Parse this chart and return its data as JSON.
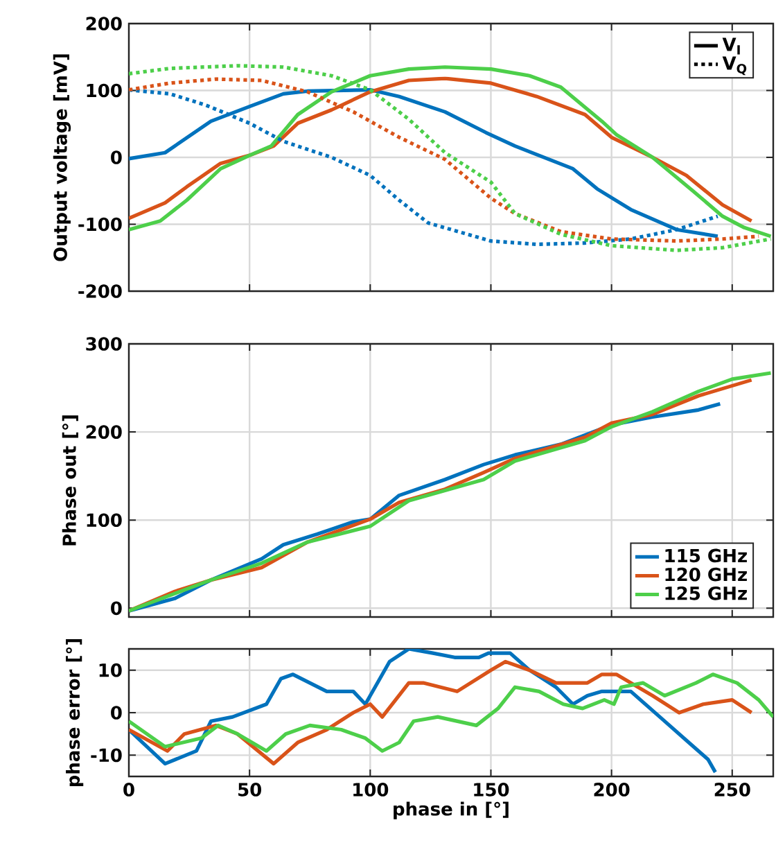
{
  "chart_data": [
    {
      "type": "line",
      "ylabel": "Output voltage [mV]",
      "xlim": [
        0,
        267
      ],
      "xticks": [
        0,
        50,
        100,
        150,
        200,
        250
      ],
      "ylim": [
        -200,
        200
      ],
      "yticks": [
        -200,
        -100,
        0,
        100,
        200
      ],
      "grid": true,
      "tick_labels": "y",
      "legend": "top right",
      "annotations": [
        "V$_{I}$",
        "V$_{Q}$"
      ],
      "series": [
        {
          "color": "#0072bd",
          "line_style": "solid",
          "x": [
            0,
            15,
            34,
            50,
            64,
            74,
            100,
            112,
            131,
            148,
            160,
            184,
            194,
            208,
            227,
            244
          ],
          "values": [
            -2,
            7,
            54,
            76,
            95,
            99,
            101,
            91,
            68,
            37,
            17,
            -17,
            -47,
            -78,
            -108,
            -118
          ]
        },
        {
          "color": "#d95319",
          "line_style": "solid",
          "x": [
            0,
            15,
            24,
            38,
            50,
            60,
            70,
            84,
            100,
            116,
            131,
            150,
            169,
            189,
            200,
            217,
            231,
            246,
            258
          ],
          "values": [
            -91,
            -68,
            -44,
            -9,
            3,
            17,
            51,
            71,
            98,
            115,
            118,
            111,
            91,
            64,
            30,
            0,
            -27,
            -71,
            -95
          ]
        },
        {
          "color": "#4dcf4a",
          "line_style": "solid",
          "x": [
            0,
            13,
            24,
            38,
            50,
            59,
            70,
            84,
            100,
            116,
            131,
            150,
            166,
            179,
            196,
            202,
            217,
            234,
            246,
            255,
            266
          ],
          "values": [
            -108,
            -95,
            -64,
            -17,
            3,
            17,
            64,
            98,
            122,
            132,
            135,
            132,
            122,
            105,
            54,
            34,
            0,
            -51,
            -88,
            -105,
            -118
          ]
        },
        {
          "color": "#0072bd",
          "line_style": "dotted",
          "x": [
            0,
            17,
            32,
            50,
            64,
            84,
            100,
            112,
            124,
            150,
            169,
            189,
            208,
            227,
            244
          ],
          "values": [
            101,
            95,
            78,
            51,
            24,
            0,
            -27,
            -64,
            -98,
            -125,
            -130,
            -128,
            -122,
            -108,
            -88
          ]
        },
        {
          "color": "#d95319",
          "line_style": "dotted",
          "x": [
            0,
            17,
            36,
            55,
            74,
            93,
            112,
            131,
            150,
            160,
            179,
            200,
            227,
            246,
            261
          ],
          "values": [
            101,
            111,
            117,
            115,
            98,
            68,
            30,
            -3,
            -61,
            -84,
            -111,
            -122,
            -125,
            -122,
            -118
          ]
        },
        {
          "color": "#4dcf4a",
          "line_style": "dotted",
          "x": [
            0,
            17,
            45,
            64,
            84,
            100,
            116,
            131,
            150,
            160,
            179,
            200,
            227,
            246,
            266
          ],
          "values": [
            125,
            133,
            137,
            135,
            122,
            101,
            57,
            7,
            -37,
            -84,
            -115,
            -132,
            -139,
            -135,
            -122
          ]
        }
      ]
    },
    {
      "type": "line",
      "ylabel": "Phase out [°]",
      "xlim": [
        0,
        267
      ],
      "xticks": [
        0,
        50,
        100,
        150,
        200,
        250
      ],
      "ylim": [
        -10,
        300
      ],
      "yticks": [
        0,
        100,
        200,
        300
      ],
      "grid": true,
      "tick_labels": "y",
      "legend": "bottom right",
      "series": [
        {
          "name": "115 GHz",
          "color": "#0072bd",
          "x": [
            0,
            19,
            34,
            55,
            64,
            78,
            93,
            100,
            112,
            131,
            147,
            160,
            179,
            200,
            217,
            236,
            245
          ],
          "values": [
            -3,
            11,
            32,
            56,
            72,
            84,
            98,
            101,
            128,
            146,
            163,
            174,
            186,
            208,
            217,
            225,
            232
          ]
        },
        {
          "name": "120 GHz",
          "color": "#d95319",
          "x": [
            0,
            19,
            34,
            55,
            74,
            100,
            112,
            131,
            147,
            160,
            189,
            200,
            217,
            236,
            258
          ],
          "values": [
            -3,
            19,
            32,
            46,
            75,
            101,
            120,
            135,
            154,
            170,
            194,
            210,
            220,
            241,
            259
          ]
        },
        {
          "name": "125 GHz",
          "color": "#4dcf4a",
          "x": [
            0,
            34,
            55,
            74,
            100,
            116,
            147,
            160,
            189,
            200,
            217,
            236,
            250,
            266
          ],
          "values": [
            -3,
            32,
            51,
            75,
            93,
            122,
            146,
            167,
            190,
            206,
            223,
            246,
            260,
            267
          ]
        }
      ]
    },
    {
      "type": "line",
      "ylabel": "phase error [°]",
      "xlabel": "phase in [°]",
      "xlim": [
        0,
        267
      ],
      "xticks": [
        0,
        50,
        100,
        150,
        200,
        250
      ],
      "ylim": [
        -15,
        15
      ],
      "yticks": [
        -10,
        0,
        10
      ],
      "grid": true,
      "series": [
        {
          "color": "#0072bd",
          "x": [
            0,
            15,
            28,
            34,
            43,
            57,
            63,
            68,
            75,
            82,
            93,
            98,
            108,
            116,
            126,
            135,
            145,
            149,
            158,
            166,
            177,
            184,
            190,
            196,
            208,
            220,
            232,
            240,
            243
          ],
          "values": [
            -4,
            -12,
            -9,
            -2,
            -1,
            2,
            8,
            9,
            7,
            5,
            5,
            2,
            12,
            15,
            14,
            13,
            13,
            14,
            14,
            10,
            6,
            2,
            4,
            5,
            5,
            -1,
            -7,
            -11,
            -14
          ]
        },
        {
          "color": "#d95319",
          "x": [
            0,
            16,
            23,
            36,
            45,
            60,
            70,
            82,
            93,
            100,
            105,
            116,
            122,
            136,
            150,
            156,
            166,
            177,
            190,
            196,
            202,
            217,
            228,
            238,
            250,
            258
          ],
          "values": [
            -4,
            -9,
            -5,
            -3,
            -5,
            -12,
            -7,
            -4,
            0,
            2,
            -1,
            7,
            7,
            5,
            10,
            12,
            10,
            7,
            7,
            9,
            9,
            4,
            0,
            2,
            3,
            0
          ]
        },
        {
          "color": "#4dcf4a",
          "x": [
            0,
            15,
            30,
            37,
            45,
            57,
            65,
            75,
            88,
            98,
            105,
            112,
            118,
            128,
            144,
            153,
            160,
            170,
            180,
            188,
            197,
            201,
            204,
            213,
            222,
            235,
            242,
            252,
            261,
            267
          ],
          "values": [
            -2,
            -8,
            -6,
            -3,
            -5,
            -9,
            -5,
            -3,
            -4,
            -6,
            -9,
            -7,
            -2,
            -1,
            -3,
            1,
            6,
            5,
            2,
            1,
            3,
            2,
            6,
            7,
            4,
            7,
            9,
            7,
            3,
            -1
          ]
        }
      ]
    }
  ]
}
